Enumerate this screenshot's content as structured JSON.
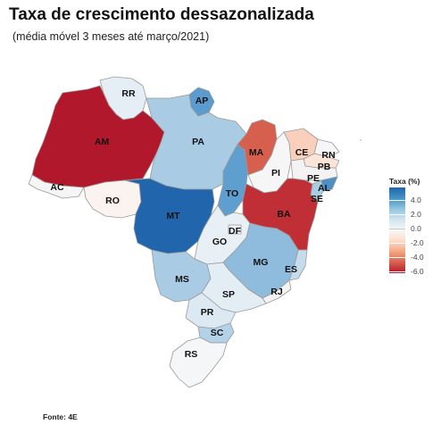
{
  "title": "Taxa de crescimento dessazonalizada",
  "subtitle": "(média móvel 3 meses até março/2021)",
  "source": "Fonte: 4E",
  "legend": {
    "title": "Taxa (%)",
    "ticks": [
      "4.0",
      "2.0",
      "0.0",
      "-2.0",
      "-4.0",
      "-6.0"
    ],
    "colors": [
      "#2166ac",
      "#4393c3",
      "#92c5de",
      "#d1e5f0",
      "#f7f7f7",
      "#fddbc7",
      "#f4a582",
      "#d6604d",
      "#b2182b"
    ]
  },
  "states": [
    {
      "id": "RR",
      "label": "RR",
      "fill": "#e6eef5"
    },
    {
      "id": "AP",
      "label": "AP",
      "fill": "#5b9bcd"
    },
    {
      "id": "AM",
      "label": "AM",
      "fill": "#b2182b"
    },
    {
      "id": "PA",
      "label": "PA",
      "fill": "#a9cce4"
    },
    {
      "id": "AC",
      "label": "AC",
      "fill": "#f5f5f5"
    },
    {
      "id": "RO",
      "label": "RO",
      "fill": "#fbf3ef"
    },
    {
      "id": "MT",
      "label": "MT",
      "fill": "#2166ac"
    },
    {
      "id": "TO",
      "label": "TO",
      "fill": "#5e9fd0"
    },
    {
      "id": "MA",
      "label": "MA",
      "fill": "#d6604d"
    },
    {
      "id": "PI",
      "label": "PI",
      "fill": "#f6f6f6"
    },
    {
      "id": "CE",
      "label": "CE",
      "fill": "#fad0bd"
    },
    {
      "id": "RN",
      "label": "RN",
      "fill": "#f6f6f6"
    },
    {
      "id": "PB",
      "label": "PB",
      "fill": "#fce4d8"
    },
    {
      "id": "PE",
      "label": "PE",
      "fill": "#f3f3f3"
    },
    {
      "id": "AL",
      "label": "AL",
      "fill": "#4d8fc6"
    },
    {
      "id": "SE",
      "label": "SE",
      "fill": "#a9cce4"
    },
    {
      "id": "BA",
      "label": "BA",
      "fill": "#c12f36"
    },
    {
      "id": "DF",
      "label": "DF",
      "fill": "#eef4f8"
    },
    {
      "id": "GO",
      "label": "GO",
      "fill": "#e9f0f5"
    },
    {
      "id": "MG",
      "label": "MG",
      "fill": "#8fbbdc"
    },
    {
      "id": "ES",
      "label": "ES",
      "fill": "#c5dced"
    },
    {
      "id": "MS",
      "label": "MS",
      "fill": "#a9cce4"
    },
    {
      "id": "SP",
      "label": "SP",
      "fill": "#e3edf4"
    },
    {
      "id": "RJ",
      "label": "RJ",
      "fill": "#f3f3f3"
    },
    {
      "id": "PR",
      "label": "PR",
      "fill": "#dde9f2"
    },
    {
      "id": "SC",
      "label": "SC",
      "fill": "#b3d2e8"
    },
    {
      "id": "RS",
      "label": "RS",
      "fill": "#f4f6f8"
    }
  ]
}
